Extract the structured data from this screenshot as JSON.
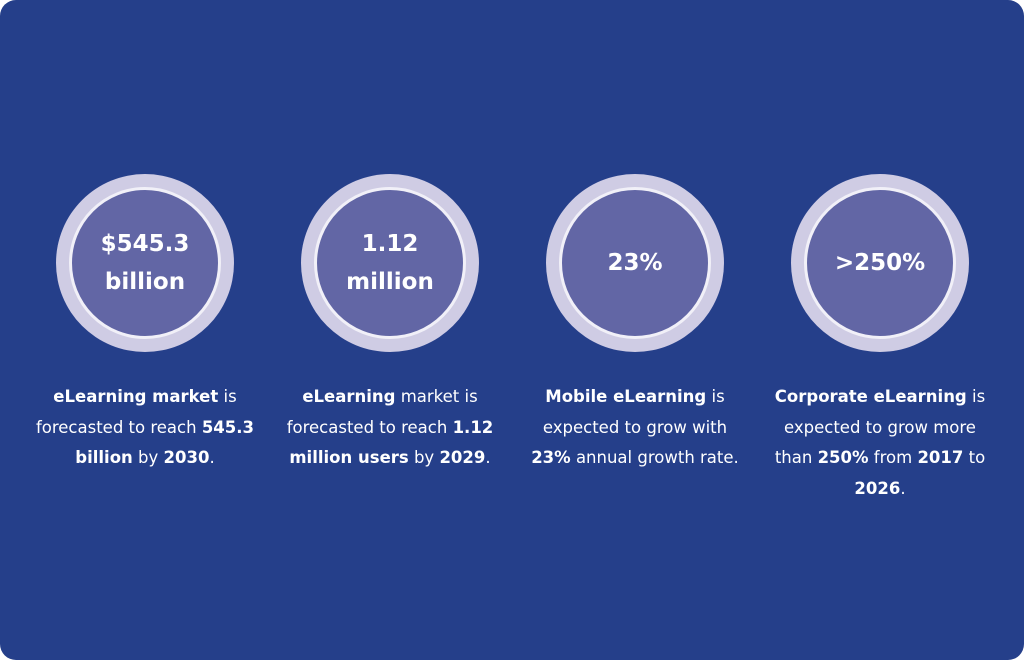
{
  "stats": [
    {
      "value": "$545.3 billion",
      "description": [
        {
          "text": "eLearning market",
          "bold": true
        },
        {
          "text": " is forecasted to reach ",
          "bold": false
        },
        {
          "text": "545.3 billion",
          "bold": true
        },
        {
          "text": " by ",
          "bold": false
        },
        {
          "text": "2030",
          "bold": true
        },
        {
          "text": ".",
          "bold": false
        }
      ]
    },
    {
      "value": "1.12 million",
      "description": [
        {
          "text": "eLearning",
          "bold": true
        },
        {
          "text": " market is forecasted to reach ",
          "bold": false
        },
        {
          "text": "1.12 million users",
          "bold": true
        },
        {
          "text": " by ",
          "bold": false
        },
        {
          "text": "2029",
          "bold": true
        },
        {
          "text": ".",
          "bold": false
        }
      ]
    },
    {
      "value": "23%",
      "description": [
        {
          "text": "Mobile eLearning",
          "bold": true
        },
        {
          "text": " is expected to grow with ",
          "bold": false
        },
        {
          "text": "23%",
          "bold": true
        },
        {
          "text": " annual growth rate.",
          "bold": false
        }
      ]
    },
    {
      "value": ">250%",
      "description": [
        {
          "text": "Corporate eLearning",
          "bold": true
        },
        {
          "text": " is expected to grow more than ",
          "bold": false
        },
        {
          "text": "250%",
          "bold": true
        },
        {
          "text": " from ",
          "bold": false
        },
        {
          "text": "2017",
          "bold": true
        },
        {
          "text": " to ",
          "bold": false
        },
        {
          "text": "2026",
          "bold": true
        },
        {
          "text": ".",
          "bold": false
        }
      ]
    }
  ]
}
